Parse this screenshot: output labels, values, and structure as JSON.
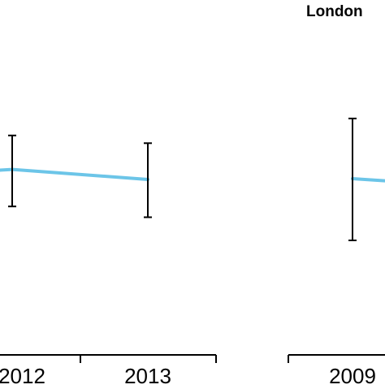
{
  "chart_data": [
    {
      "type": "line",
      "title": "",
      "xlabel": "",
      "ylabel": "",
      "categories": [
        "2012",
        "2013"
      ],
      "series": [
        {
          "color": "#6cc5e8",
          "values": [
            2012.0,
            1999.0
          ],
          "error_low": [
            1964.0,
            1950.0
          ],
          "error_high": [
            2056.0,
            2046.0
          ],
          "x_values": [
            2012,
            2013
          ]
        }
      ],
      "ylim": [
        1800,
        2200
      ],
      "grid": false
    },
    {
      "type": "line",
      "title": "London",
      "xlabel": "",
      "ylabel": "",
      "categories": [
        "2009"
      ],
      "series": [
        {
          "color": "#6cc5e8",
          "values": [
            2000.0
          ],
          "error_low": [
            1920.0
          ],
          "error_high": [
            2078.0
          ],
          "x_values": [
            2009
          ]
        }
      ],
      "ylim": [
        1800,
        2200
      ],
      "grid": false
    }
  ]
}
